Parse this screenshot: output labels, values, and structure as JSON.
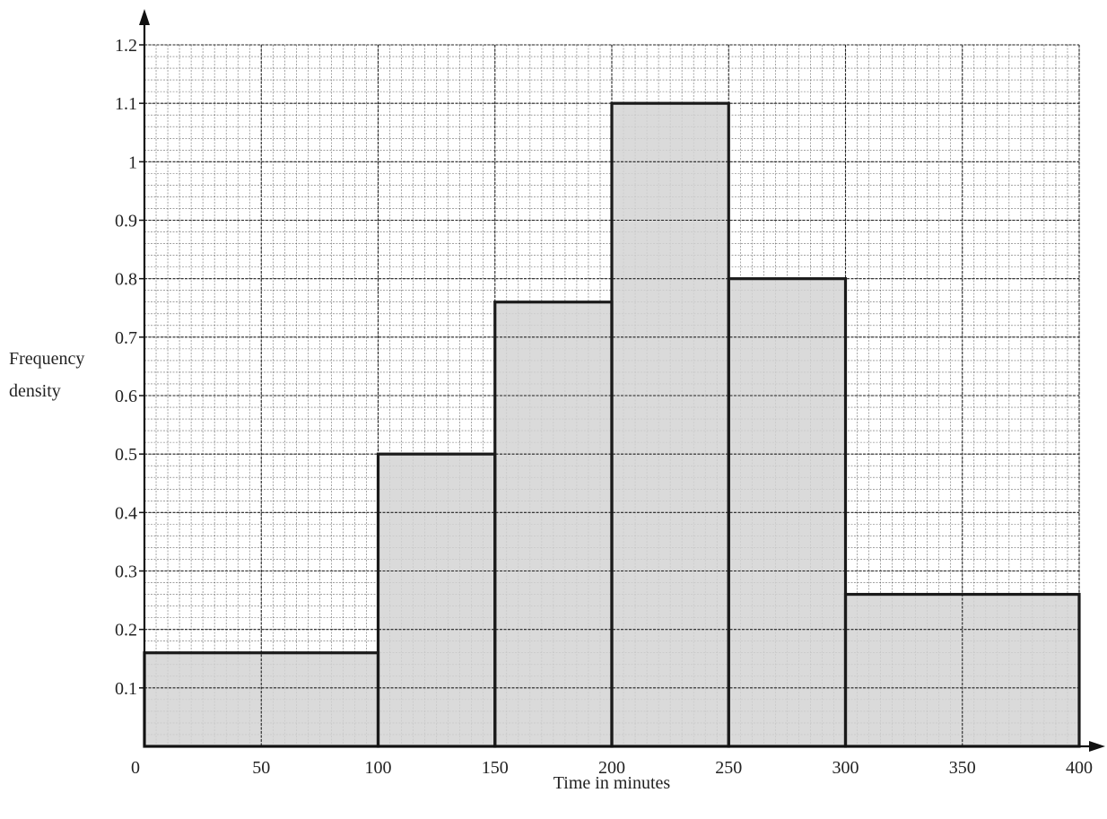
{
  "chart_data": {
    "type": "histogram",
    "xlabel": "Time in minutes",
    "ylabel_lines": [
      "Frequency",
      "density"
    ],
    "xlim": [
      0,
      400
    ],
    "ylim": [
      0,
      1.2
    ],
    "x_ticks": [
      0,
      50,
      100,
      150,
      200,
      250,
      300,
      350,
      400
    ],
    "y_ticks": [
      0.1,
      0.2,
      0.3,
      0.4,
      0.5,
      0.6,
      0.7,
      0.8,
      0.9,
      1,
      1.1,
      1.2
    ],
    "x_tick_labels": [
      "0",
      "50",
      "100",
      "150",
      "200",
      "250",
      "300",
      "350",
      "400"
    ],
    "y_tick_labels": [
      "0.1",
      "0.2",
      "0.3",
      "0.4",
      "0.5",
      "0.6",
      "0.7",
      "0.8",
      "0.9",
      "1",
      "1.1",
      "1.2"
    ],
    "bins": [
      {
        "from": 0,
        "to": 100,
        "density": 0.16
      },
      {
        "from": 100,
        "to": 150,
        "density": 0.5
      },
      {
        "from": 150,
        "to": 200,
        "density": 0.76
      },
      {
        "from": 200,
        "to": 250,
        "density": 1.1
      },
      {
        "from": 250,
        "to": 300,
        "density": 0.8
      },
      {
        "from": 300,
        "to": 400,
        "density": 0.26
      }
    ],
    "grid": true,
    "minor_grid_step_x": 5,
    "minor_grid_step_y": 0.02,
    "colors": {
      "bar_fill": "#d4d4d4",
      "bar_stroke": "#1a1a1a",
      "grid": "#3a3a3a",
      "axis": "#111111"
    }
  }
}
